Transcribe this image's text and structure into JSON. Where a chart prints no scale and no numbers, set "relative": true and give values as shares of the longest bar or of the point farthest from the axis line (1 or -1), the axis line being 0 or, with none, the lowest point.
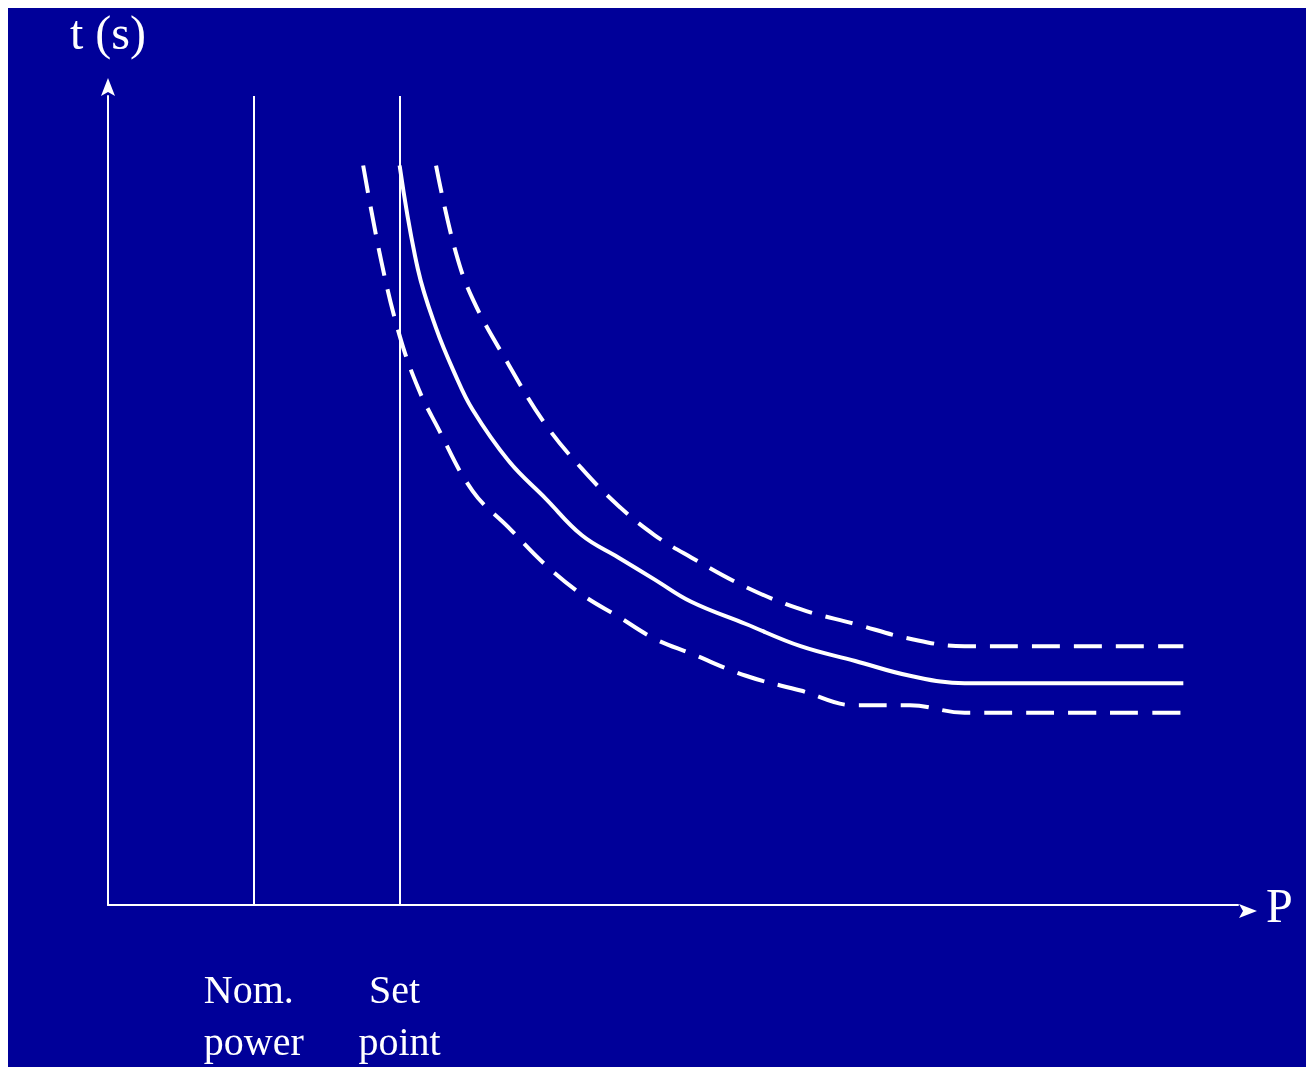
{
  "chart_data": {
    "type": "line",
    "relative": true,
    "xlabel": "P",
    "ylabel": "t (s)",
    "categories": [
      null,
      null,
      null,
      null,
      null,
      null,
      null,
      null,
      "Nom. power",
      null,
      null,
      null,
      null,
      null,
      null,
      null,
      "Set point",
      null,
      null,
      null,
      null,
      null,
      null,
      null,
      null,
      null,
      null,
      null,
      null,
      null,
      null,
      null,
      null,
      null,
      null,
      null,
      null,
      null,
      null,
      null,
      null,
      null,
      null,
      null,
      null,
      null,
      null,
      null,
      null,
      null,
      null,
      null,
      null,
      null,
      null,
      null,
      null,
      null,
      null,
      null,
      null,
      null,
      null
    ],
    "series": [
      {
        "color": "#ffffff",
        "line_style": "solid",
        "values": [
          null,
          null,
          null,
          null,
          null,
          null,
          null,
          null,
          null,
          null,
          null,
          null,
          null,
          null,
          null,
          null,
          1.0,
          0.86,
          0.78,
          0.72,
          0.67,
          null,
          0.6,
          null,
          0.55,
          null,
          0.5,
          null,
          0.47,
          null,
          0.44,
          null,
          0.41,
          null,
          null,
          0.38,
          null,
          null,
          0.35,
          null,
          null,
          0.33,
          null,
          null,
          0.31,
          null,
          null,
          0.3,
          null,
          null,
          0.3,
          null,
          null,
          0.3,
          null,
          null,
          0.3,
          null,
          null,
          0.3,
          null,
          null,
          null
        ]
      },
      {
        "color": "#ffffff",
        "line_style": "dashed",
        "values": [
          null,
          null,
          null,
          null,
          null,
          null,
          null,
          null,
          null,
          null,
          null,
          null,
          null,
          null,
          1.0,
          0.87,
          0.77,
          0.7,
          0.65,
          null,
          0.56,
          null,
          0.51,
          null,
          0.46,
          null,
          0.42,
          null,
          0.39,
          null,
          0.36,
          null,
          0.34,
          null,
          null,
          0.31,
          null,
          null,
          0.29,
          null,
          null,
          0.27,
          null,
          null,
          0.27,
          null,
          null,
          0.26,
          null,
          null,
          0.26,
          null,
          null,
          0.26,
          null,
          null,
          0.26,
          null,
          null,
          0.26,
          null,
          null,
          null
        ]
      },
      {
        "color": "#ffffff",
        "line_style": "dashed",
        "values": [
          null,
          null,
          null,
          null,
          null,
          null,
          null,
          null,
          null,
          null,
          null,
          null,
          null,
          null,
          null,
          null,
          null,
          null,
          1.0,
          0.89,
          0.82,
          null,
          0.73,
          null,
          0.65,
          null,
          0.59,
          null,
          0.54,
          null,
          0.5,
          null,
          0.47,
          null,
          null,
          0.43,
          null,
          null,
          0.4,
          null,
          null,
          0.38,
          null,
          null,
          0.36,
          null,
          null,
          0.35,
          null,
          null,
          0.35,
          null,
          null,
          0.35,
          null,
          null,
          0.35,
          null,
          null,
          0.35,
          null,
          null,
          null
        ]
      }
    ],
    "ref_lines": [
      {
        "axis": "x",
        "value": "Nom. power",
        "color": "#ffffff"
      },
      {
        "axis": "x",
        "value": "Set point",
        "color": "#ffffff"
      }
    ],
    "grid": false,
    "marker": "none"
  }
}
